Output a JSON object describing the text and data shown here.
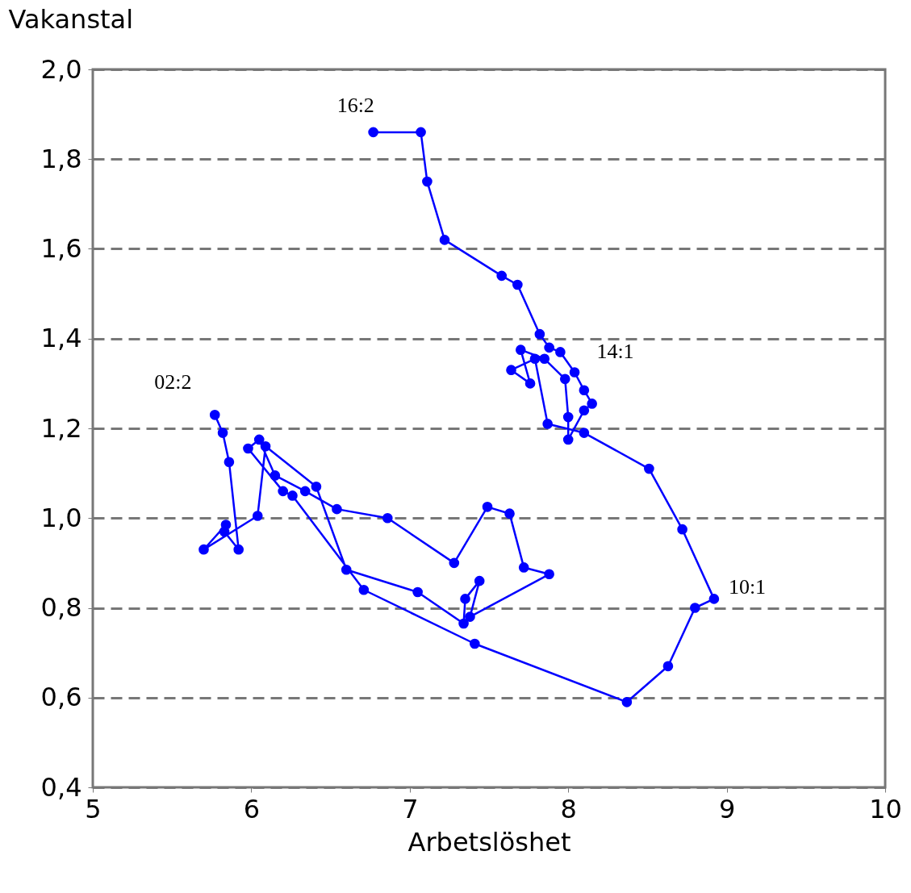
{
  "chart_data": {
    "type": "line",
    "xlabel": "Arbetslöshet",
    "ylabel": "Vakanstal",
    "marker": "circle",
    "grid": "y",
    "xlim": [
      5,
      10
    ],
    "xticks": [
      5,
      6,
      7,
      8,
      9,
      10
    ],
    "ylim": [
      0.4,
      2.0
    ],
    "yticks": [
      {
        "value": 0.4,
        "label": "0,4"
      },
      {
        "value": 0.6,
        "label": "0,6"
      },
      {
        "value": 0.8,
        "label": "0,8"
      },
      {
        "value": 1.0,
        "label": "1,0"
      },
      {
        "value": 1.2,
        "label": "1,2"
      },
      {
        "value": 1.4,
        "label": "1,4"
      },
      {
        "value": 1.6,
        "label": "1,6"
      },
      {
        "value": 1.8,
        "label": "1,8"
      },
      {
        "value": 2.0,
        "label": "2,0"
      }
    ],
    "annotations": [
      {
        "text": "02:2",
        "x": 5.77,
        "y": 1.23
      },
      {
        "text": "10:1",
        "x": 8.92,
        "y": 0.82
      },
      {
        "text": "14:1",
        "x": 7.95,
        "y": 1.37
      },
      {
        "text": "16:2",
        "x": 6.77,
        "y": 1.86
      }
    ],
    "series": [
      {
        "color": "#0000ff",
        "x": [
          5.77,
          5.82,
          5.86,
          5.92,
          5.83,
          5.84,
          5.7,
          6.04,
          6.09,
          6.41,
          6.6,
          7.05,
          7.34,
          7.35,
          7.44,
          7.38,
          7.88,
          7.72,
          7.63,
          7.49,
          7.28,
          6.86,
          6.54,
          6.34,
          6.15,
          6.05,
          5.98,
          6.2,
          6.26,
          6.71,
          7.41,
          8.37,
          8.63,
          8.8,
          8.92,
          8.72,
          8.51,
          8.1,
          7.87,
          7.79,
          7.64,
          7.76,
          7.7,
          7.85,
          7.98,
          8.0,
          8.0,
          8.1,
          8.15,
          8.1,
          8.04,
          7.95,
          7.88,
          7.82,
          7.68,
          7.58,
          7.22,
          7.11,
          7.07,
          6.77
        ],
        "values": [
          1.23,
          1.19,
          1.125,
          0.93,
          0.97,
          0.985,
          0.93,
          1.005,
          1.16,
          1.07,
          0.885,
          0.835,
          0.765,
          0.82,
          0.86,
          0.78,
          0.875,
          0.89,
          1.01,
          1.025,
          0.9,
          1.0,
          1.02,
          1.06,
          1.095,
          1.175,
          1.155,
          1.06,
          1.05,
          0.84,
          0.72,
          0.59,
          0.67,
          0.8,
          0.82,
          0.975,
          1.11,
          1.19,
          1.21,
          1.355,
          1.33,
          1.3,
          1.375,
          1.355,
          1.31,
          1.225,
          1.175,
          1.24,
          1.255,
          1.285,
          1.325,
          1.37,
          1.38,
          1.41,
          1.52,
          1.54,
          1.62,
          1.75,
          1.86,
          1.86
        ]
      }
    ]
  }
}
